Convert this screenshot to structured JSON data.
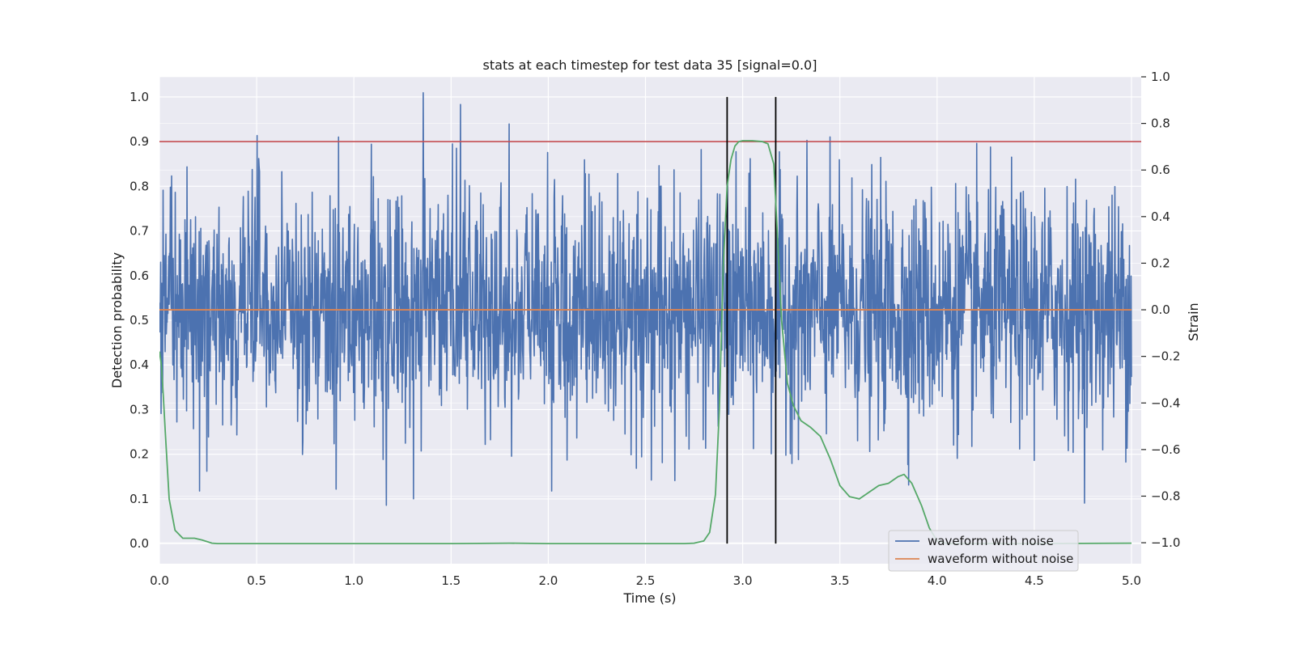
{
  "chart_data": {
    "type": "line",
    "title": "stats at each timestep for test data 35 [signal=0.0]",
    "xlabel": "Time (s)",
    "ylabel": "Detection probability",
    "ylabel_right": "Strain",
    "xlim": [
      0.0,
      5.05
    ],
    "ylim": [
      -0.045,
      1.045
    ],
    "ylim_right": [
      -1.09,
      1.0
    ],
    "grid": true,
    "legend_placement": "lower-right",
    "x_ticks": [
      0.0,
      0.5,
      1.0,
      1.5,
      2.0,
      2.5,
      3.0,
      3.5,
      4.0,
      4.5,
      5.0
    ],
    "x_tick_labels": [
      "0.0",
      "0.5",
      "1.0",
      "1.5",
      "2.0",
      "2.5",
      "3.0",
      "3.5",
      "4.0",
      "4.5",
      "5.0"
    ],
    "y_ticks": [
      0.0,
      0.1,
      0.2,
      0.3,
      0.4,
      0.5,
      0.6,
      0.7,
      0.8,
      0.9,
      1.0
    ],
    "y_tick_labels": [
      "0.0",
      "0.1",
      "0.2",
      "0.3",
      "0.4",
      "0.5",
      "0.6",
      "0.7",
      "0.8",
      "0.9",
      "1.0"
    ],
    "y_right_ticks": [
      -1.0,
      -0.8,
      -0.6,
      -0.4,
      -0.2,
      0.0,
      0.2,
      0.4,
      0.6,
      0.8,
      1.0
    ],
    "y_right_tick_labels": [
      "−1.0",
      "−0.8",
      "−0.6",
      "−0.4",
      "−0.2",
      "0.0",
      "0.2",
      "0.4",
      "0.6",
      "0.8",
      "1.0"
    ],
    "threshold": {
      "y": 0.9,
      "color": "#c44e52"
    },
    "vertical_markers": {
      "x": [
        2.92,
        3.17
      ],
      "y_range": [
        0.0,
        1.0
      ],
      "color": "#000000"
    },
    "detection_probability": {
      "color": "#55a868",
      "x": [
        0.0,
        0.01,
        0.02,
        0.03,
        0.05,
        0.08,
        0.12,
        0.18,
        0.22,
        0.27,
        0.3,
        0.5,
        1.0,
        1.5,
        1.8,
        2.0,
        2.5,
        2.7,
        2.75,
        2.8,
        2.83,
        2.86,
        2.88,
        2.9,
        2.92,
        2.94,
        2.96,
        2.98,
        3.0,
        3.05,
        3.1,
        3.13,
        3.16,
        3.18,
        3.2,
        3.23,
        3.26,
        3.3,
        3.35,
        3.4,
        3.45,
        3.5,
        3.55,
        3.6,
        3.65,
        3.7,
        3.75,
        3.8,
        3.83,
        3.87,
        3.92,
        3.96,
        4.0,
        4.05,
        4.5,
        5.0
      ],
      "y": [
        0.43,
        0.4,
        0.33,
        0.25,
        0.1,
        0.03,
        0.012,
        0.012,
        0.008,
        0.001,
        0.0,
        0.0,
        0.0,
        0.0,
        0.001,
        0.0,
        0.0,
        0.0,
        0.001,
        0.006,
        0.025,
        0.11,
        0.3,
        0.62,
        0.8,
        0.86,
        0.89,
        0.9,
        0.902,
        0.902,
        0.9,
        0.895,
        0.85,
        0.68,
        0.5,
        0.36,
        0.31,
        0.275,
        0.26,
        0.24,
        0.19,
        0.13,
        0.105,
        0.1,
        0.115,
        0.13,
        0.135,
        0.15,
        0.155,
        0.135,
        0.085,
        0.035,
        0.006,
        0.0,
        0.0,
        0.001
      ]
    },
    "series": [
      {
        "name": "waveform with noise",
        "color": "#4c72b0",
        "axis": "right",
        "noise_sigma": 0.25,
        "points": 2400
      },
      {
        "name": "waveform without noise",
        "color": "#dd8452",
        "axis": "right",
        "constant_value": 0.0
      }
    ]
  }
}
